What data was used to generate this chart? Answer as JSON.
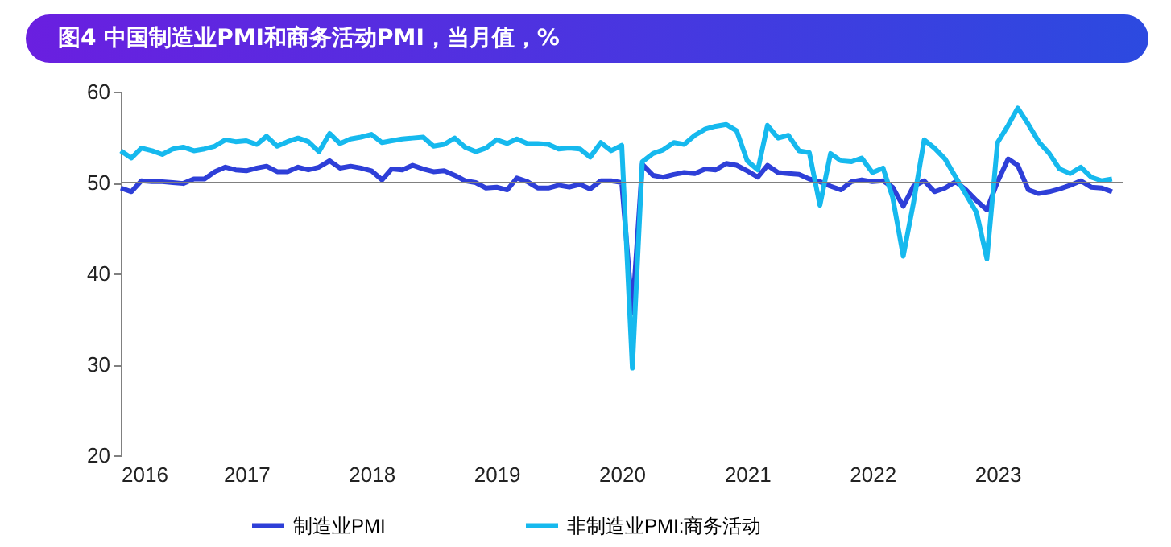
{
  "chart_data": {
    "type": "line",
    "title": "图4 中国制造业PMI和商务活动PMI，当月值，%",
    "x": [
      "2016-01",
      "2016-02",
      "2016-03",
      "2016-04",
      "2016-05",
      "2016-06",
      "2016-07",
      "2016-08",
      "2016-09",
      "2016-10",
      "2016-11",
      "2016-12",
      "2017-01",
      "2017-02",
      "2017-03",
      "2017-04",
      "2017-05",
      "2017-06",
      "2017-07",
      "2017-08",
      "2017-09",
      "2017-10",
      "2017-11",
      "2017-12",
      "2018-01",
      "2018-02",
      "2018-03",
      "2018-04",
      "2018-05",
      "2018-06",
      "2018-07",
      "2018-08",
      "2018-09",
      "2018-10",
      "2018-11",
      "2018-12",
      "2019-01",
      "2019-02",
      "2019-03",
      "2019-04",
      "2019-05",
      "2019-06",
      "2019-07",
      "2019-08",
      "2019-09",
      "2019-10",
      "2019-11",
      "2019-12",
      "2020-01",
      "2020-02",
      "2020-03",
      "2020-04",
      "2020-05",
      "2020-06",
      "2020-07",
      "2020-08",
      "2020-09",
      "2020-10",
      "2020-11",
      "2020-12",
      "2021-01",
      "2021-02",
      "2021-03",
      "2021-04",
      "2021-05",
      "2021-06",
      "2021-07",
      "2021-08",
      "2021-09",
      "2021-10",
      "2021-11",
      "2021-12",
      "2022-01",
      "2022-02",
      "2022-03",
      "2022-04",
      "2022-05",
      "2022-06",
      "2022-07",
      "2022-08",
      "2022-09",
      "2022-10",
      "2022-11",
      "2022-12",
      "2023-01",
      "2023-02",
      "2023-03",
      "2023-04",
      "2023-05",
      "2023-06",
      "2023-07",
      "2023-08",
      "2023-09",
      "2023-10",
      "2023-11",
      "2023-12"
    ],
    "series": [
      {
        "name": "制造业PMI",
        "color": "#2e3fd8",
        "values": [
          49.4,
          49.0,
          50.2,
          50.1,
          50.1,
          50.0,
          49.9,
          50.4,
          50.4,
          51.2,
          51.7,
          51.4,
          51.3,
          51.6,
          51.8,
          51.2,
          51.2,
          51.7,
          51.4,
          51.7,
          52.4,
          51.6,
          51.8,
          51.6,
          51.3,
          50.3,
          51.5,
          51.4,
          51.9,
          51.5,
          51.2,
          51.3,
          50.8,
          50.2,
          50.0,
          49.4,
          49.5,
          49.2,
          50.5,
          50.1,
          49.4,
          49.4,
          49.7,
          49.5,
          49.8,
          49.3,
          50.2,
          50.2,
          50.0,
          35.7,
          52.0,
          50.8,
          50.6,
          50.9,
          51.1,
          51.0,
          51.5,
          51.4,
          52.1,
          51.9,
          51.3,
          50.6,
          51.9,
          51.1,
          51.0,
          50.9,
          50.4,
          50.1,
          49.6,
          49.2,
          50.1,
          50.3,
          50.1,
          50.2,
          49.5,
          47.4,
          49.6,
          50.2,
          49.0,
          49.4,
          50.1,
          49.2,
          48.0,
          47.0,
          50.1,
          52.6,
          51.9,
          49.2,
          48.8,
          49.0,
          49.3,
          49.7,
          50.2,
          49.5,
          49.4,
          49.0
        ]
      },
      {
        "name": "非制造业PMI:商务活动",
        "color": "#16b9ee",
        "values": [
          53.5,
          52.7,
          53.8,
          53.5,
          53.1,
          53.7,
          53.9,
          53.5,
          53.7,
          54.0,
          54.7,
          54.5,
          54.6,
          54.2,
          55.1,
          54.0,
          54.5,
          54.9,
          54.5,
          53.4,
          55.4,
          54.3,
          54.8,
          55.0,
          55.3,
          54.4,
          54.6,
          54.8,
          54.9,
          55.0,
          54.0,
          54.2,
          54.9,
          53.9,
          53.4,
          53.8,
          54.7,
          54.3,
          54.8,
          54.3,
          54.3,
          54.2,
          53.7,
          53.8,
          53.7,
          52.8,
          54.4,
          53.5,
          54.1,
          29.6,
          52.3,
          53.2,
          53.6,
          54.4,
          54.2,
          55.2,
          55.9,
          56.2,
          56.4,
          55.7,
          52.4,
          51.4,
          56.3,
          54.9,
          55.2,
          53.5,
          53.3,
          47.5,
          53.2,
          52.4,
          52.3,
          52.7,
          51.1,
          51.6,
          48.4,
          41.9,
          47.8,
          54.7,
          53.8,
          52.6,
          50.6,
          48.7,
          46.7,
          41.6,
          54.4,
          56.3,
          58.2,
          56.4,
          54.5,
          53.2,
          51.5,
          51.0,
          51.7,
          50.6,
          50.2,
          50.4
        ]
      }
    ],
    "xlim": [
      "2016-01",
      "2024-01"
    ],
    "xticks": [
      "2016",
      "2017",
      "2018",
      "2019",
      "2020",
      "2021",
      "2022",
      "2023"
    ],
    "ylim": [
      20,
      60
    ],
    "yticks": [
      20,
      30,
      40,
      50,
      60
    ],
    "ref_lines": [
      {
        "axis": "y",
        "value": 50,
        "color": "#808080"
      }
    ],
    "grid": false,
    "legend": "bottom",
    "marker": "none",
    "line_style": "solid"
  }
}
